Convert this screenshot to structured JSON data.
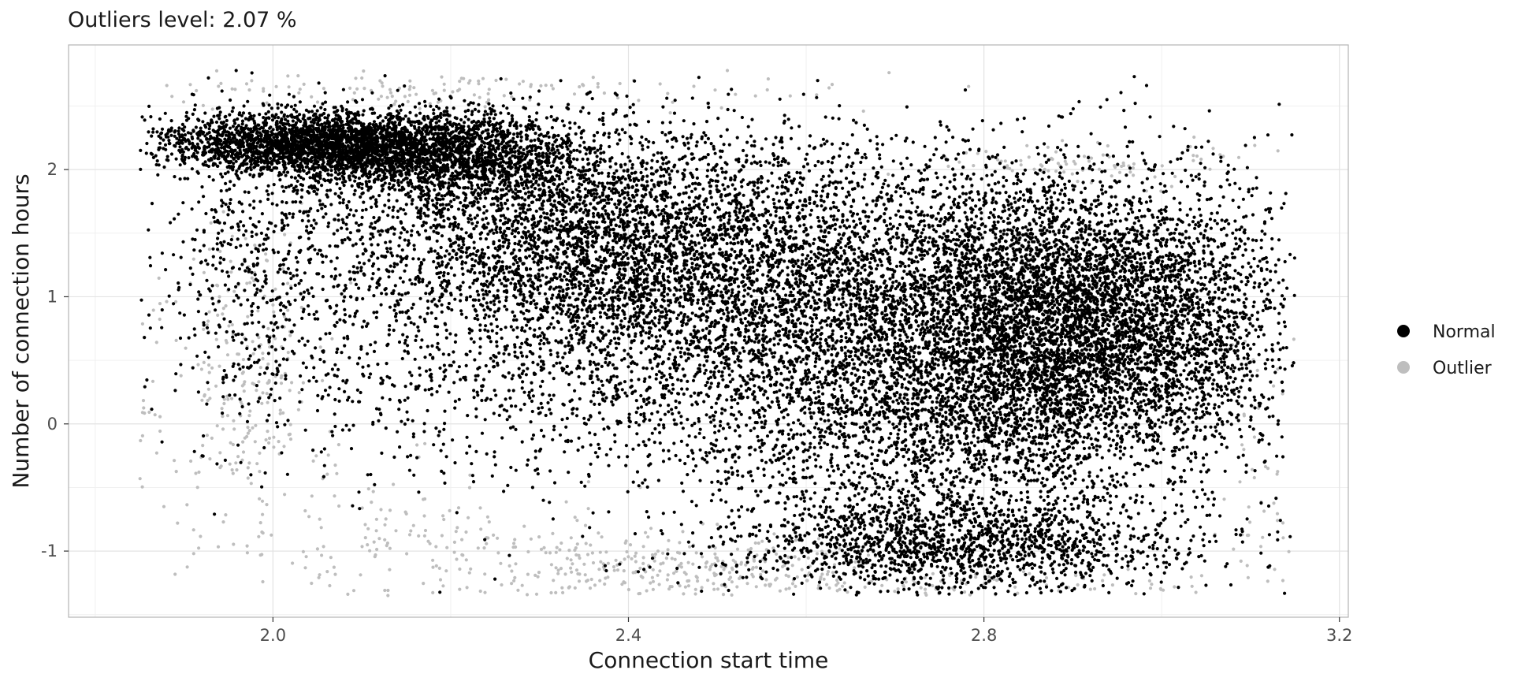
{
  "chart_data": {
    "type": "scatter",
    "title": "Outliers level: 2.07 %",
    "xlabel": "Connection start time",
    "ylabel": "Number of connection hours",
    "xlim": [
      1.77,
      3.21
    ],
    "ylim": [
      -1.52,
      2.98
    ],
    "x_ticks": [
      2.0,
      2.4,
      2.8,
      3.2
    ],
    "x_tick_labels": [
      "2.0",
      "2.4",
      "2.8",
      "3.2"
    ],
    "y_ticks": [
      -1,
      0,
      1,
      2
    ],
    "y_tick_labels": [
      "-1",
      "0",
      "1",
      "2"
    ],
    "grid": true,
    "legend_position": "right",
    "series": [
      {
        "name": "Normal",
        "color": "#000000",
        "clusters": [
          {
            "n": 2600,
            "x_mean": 2.05,
            "x_sd": 0.09,
            "y_mean": 2.2,
            "y_sd": 0.12
          },
          {
            "n": 1800,
            "x_mean": 2.2,
            "x_sd": 0.08,
            "y_mean": 2.1,
            "y_sd": 0.18
          },
          {
            "n": 2800,
            "x_mean": 2.35,
            "x_sd": 0.15,
            "y_mean": 1.5,
            "y_sd": 0.45
          },
          {
            "n": 4000,
            "x_mean": 2.6,
            "x_sd": 0.2,
            "y_mean": 1.1,
            "y_sd": 0.55
          },
          {
            "n": 3800,
            "x_mean": 2.88,
            "x_sd": 0.09,
            "y_mean": 0.85,
            "y_sd": 0.55
          },
          {
            "n": 2600,
            "x_mean": 2.75,
            "x_sd": 0.16,
            "y_mean": 0.1,
            "y_sd": 0.5
          },
          {
            "n": 1300,
            "x_mean": 3.02,
            "x_sd": 0.07,
            "y_mean": 0.8,
            "y_sd": 0.55
          },
          {
            "n": 1600,
            "x_mean": 2.78,
            "x_sd": 0.13,
            "y_mean": -0.95,
            "y_sd": 0.2
          },
          {
            "n": 1100,
            "x_mean": 2.3,
            "x_sd": 0.22,
            "y_mean": 0.5,
            "y_sd": 0.6
          },
          {
            "n": 500,
            "x_mean": 2.0,
            "x_sd": 0.06,
            "y_mean": 1.3,
            "y_sd": 0.6
          }
        ]
      },
      {
        "name": "Outlier",
        "color": "#bebebe",
        "clusters": [
          {
            "n": 220,
            "x_mean": 1.97,
            "x_sd": 0.04,
            "y_mean": 0.4,
            "y_sd": 0.55
          },
          {
            "n": 180,
            "x_mean": 2.15,
            "x_sd": 0.12,
            "y_mean": -0.95,
            "y_sd": 0.3
          },
          {
            "n": 260,
            "x_mean": 2.45,
            "x_sd": 0.12,
            "y_mean": -1.12,
            "y_sd": 0.14
          },
          {
            "n": 140,
            "x_mean": 2.2,
            "x_sd": 0.2,
            "y_mean": 2.62,
            "y_sd": 0.07
          },
          {
            "n": 90,
            "x_mean": 2.9,
            "x_sd": 0.09,
            "y_mean": 2.05,
            "y_sd": 0.1
          },
          {
            "n": 160,
            "x_mean": 2.72,
            "x_sd": 0.22,
            "y_mean": -1.25,
            "y_sd": 0.07
          },
          {
            "n": 60,
            "x_mean": 3.12,
            "x_sd": 0.03,
            "y_mean": -0.6,
            "y_sd": 0.6
          },
          {
            "n": 40,
            "x_mean": 1.88,
            "x_sd": 0.03,
            "y_mean": 0.0,
            "y_sd": 0.6
          }
        ]
      }
    ]
  }
}
